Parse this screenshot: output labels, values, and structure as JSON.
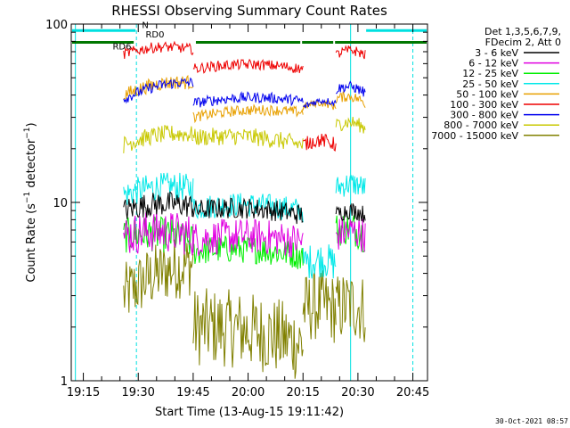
{
  "chart_data": {
    "type": "line",
    "title": "RHESSI Observing Summary Count Rates",
    "xlabel": "Start Time (13-Aug-15 19:11:42)",
    "ylabel": "Count Rate (s⁻¹ detector⁻¹)",
    "ylabel_parts": {
      "main": "Count Rate (s",
      "sup1": "−1",
      "mid": " detector",
      "sup2": "−1",
      "end": ")"
    },
    "yscale": "log",
    "ylim": [
      1,
      100
    ],
    "xlim": [
      "19:11:42",
      "20:49:00"
    ],
    "x_ticks": [
      "19:15",
      "19:30",
      "19:45",
      "20:00",
      "20:15",
      "20:30",
      "20:45"
    ],
    "y_ticks": [
      "1",
      "10",
      "100"
    ],
    "legend_header": [
      "Det 1,3,5,6,7,9,",
      "FDecim 2, Att 0"
    ],
    "legend_placement": "right",
    "footer_date": "30-Oct-2021 08:57",
    "annotations": [
      {
        "text": "N",
        "time": "19:31:00",
        "y": 95,
        "color": "#00e0e0"
      },
      {
        "text": "RD0",
        "time": "19:32:00",
        "y": 84,
        "color": "#007700"
      },
      {
        "text": "RD6",
        "time": "19:23:00",
        "y": 72,
        "color": "#007700"
      }
    ],
    "flag_bars": [
      {
        "label": "night",
        "color": "#00e0e0",
        "y": 92,
        "intervals": [
          [
            "19:11:42",
            "19:29:30"
          ],
          [
            "20:32:00",
            "20:49:00"
          ]
        ]
      },
      {
        "label": "saa",
        "color": "#007700",
        "y": 79,
        "intervals": [
          [
            "19:11:42",
            "19:29:00"
          ],
          [
            "19:45:30",
            "20:14:30"
          ],
          [
            "20:14:30",
            "20:23:30"
          ],
          [
            "20:23:30",
            "20:49:00"
          ]
        ]
      }
    ],
    "vertical_markers": [
      {
        "time": "19:12:50",
        "color": "#00e0e0",
        "style": "solid"
      },
      {
        "time": "19:29:30",
        "color": "#00e0e0",
        "style": "dashed"
      },
      {
        "time": "20:28:00",
        "color": "#00e0e0",
        "style": "solid"
      },
      {
        "time": "20:45:00",
        "color": "#00e0e0",
        "style": "dashed"
      }
    ],
    "series": [
      {
        "name": "3 - 6 keV",
        "color": "#000000",
        "segments": [
          {
            "x": [
              "19:26",
              "19:45"
            ],
            "y": [
              9,
              9.5
            ],
            "noise": 0.07
          },
          {
            "x": [
              "19:45",
              "20:15"
            ],
            "y": [
              9,
              8.5
            ],
            "noise": 0.06
          },
          {
            "x": [
              "20:24",
              "20:32"
            ],
            "y": [
              8.5,
              8.5
            ],
            "noise": 0.05
          }
        ]
      },
      {
        "name": "6 - 12 keV",
        "color": "#e000e0",
        "segments": [
          {
            "x": [
              "19:26",
              "19:45"
            ],
            "y": [
              6.5,
              6.5
            ],
            "noise": 0.12
          },
          {
            "x": [
              "19:45",
              "20:15"
            ],
            "y": [
              6.2,
              6
            ],
            "noise": 0.1
          },
          {
            "x": [
              "20:24",
              "20:32"
            ],
            "y": [
              6.5,
              6.5
            ],
            "noise": 0.1
          }
        ]
      },
      {
        "name": "12 - 25 keV",
        "color": "#00ee00",
        "segments": [
          {
            "x": [
              "19:26",
              "19:45"
            ],
            "y": [
              6.5,
              6
            ],
            "noise": 0.1
          },
          {
            "x": [
              "19:45",
              "20:15"
            ],
            "y": [
              5.3,
              5
            ],
            "noise": 0.08
          },
          {
            "x": [
              "20:24",
              "20:32"
            ],
            "y": [
              7,
              6.5
            ],
            "noise": 0.1
          }
        ]
      },
      {
        "name": "25 - 50 keV",
        "color": "#00e8e8",
        "segments": [
          {
            "x": [
              "19:26",
              "19:45"
            ],
            "y": [
              11,
              12
            ],
            "noise": 0.08
          },
          {
            "x": [
              "19:45",
              "20:15"
            ],
            "y": [
              9.3,
              9
            ],
            "noise": 0.07
          },
          {
            "x": [
              "20:15",
              "20:24"
            ],
            "y": [
              4.5,
              4.5
            ],
            "noise": 0.1
          },
          {
            "x": [
              "20:24",
              "20:32"
            ],
            "y": [
              12,
              12
            ],
            "noise": 0.07
          }
        ]
      },
      {
        "name": "50 - 100 keV",
        "color": "#e8a000",
        "segments": [
          {
            "x": [
              "19:26",
              "19:45"
            ],
            "y": [
              40,
              47
            ],
            "noise": 0.04
          },
          {
            "x": [
              "19:45",
              "20:15"
            ],
            "y": [
              30,
              32
            ],
            "noise": 0.03
          },
          {
            "x": [
              "20:15",
              "20:24"
            ],
            "y": [
              34,
              34
            ],
            "noise": 0.02
          },
          {
            "x": [
              "20:24",
              "20:32"
            ],
            "y": [
              38,
              36
            ],
            "noise": 0.03
          }
        ]
      },
      {
        "name": "100 - 300 keV",
        "color": "#ee0000",
        "segments": [
          {
            "x": [
              "19:26",
              "19:45"
            ],
            "y": [
              68,
              72
            ],
            "noise": 0.03
          },
          {
            "x": [
              "19:45",
              "20:15"
            ],
            "y": [
              56,
              56
            ],
            "noise": 0.03
          },
          {
            "x": [
              "20:15",
              "20:24"
            ],
            "y": [
              21,
              21
            ],
            "noise": 0.04
          },
          {
            "x": [
              "20:24",
              "20:32"
            ],
            "y": [
              67,
              67
            ],
            "noise": 0.03
          }
        ]
      },
      {
        "name": "300 - 800 keV",
        "color": "#0000ee",
        "segments": [
          {
            "x": [
              "19:26",
              "19:45"
            ],
            "y": [
              38,
              47
            ],
            "noise": 0.03
          },
          {
            "x": [
              "19:45",
              "20:15"
            ],
            "y": [
              36,
              37
            ],
            "noise": 0.03
          },
          {
            "x": [
              "20:15",
              "20:24"
            ],
            "y": [
              34,
              36
            ],
            "noise": 0.02
          },
          {
            "x": [
              "20:24",
              "20:32"
            ],
            "y": [
              43,
              41
            ],
            "noise": 0.03
          }
        ]
      },
      {
        "name": "800 - 7000 keV",
        "color": "#c8c800",
        "segments": [
          {
            "x": [
              "19:26",
              "19:45"
            ],
            "y": [
              21,
              24
            ],
            "noise": 0.05
          },
          {
            "x": [
              "19:45",
              "20:15"
            ],
            "y": [
              23,
              21
            ],
            "noise": 0.05
          },
          {
            "x": [
              "20:24",
              "20:32"
            ],
            "y": [
              27,
              26
            ],
            "noise": 0.04
          }
        ]
      },
      {
        "name": "7000 - 15000 keV",
        "color": "#808000",
        "segments": [
          {
            "x": [
              "19:26",
              "19:45"
            ],
            "y": [
              3,
              4.5
            ],
            "noise": 0.18
          },
          {
            "x": [
              "19:45",
              "20:15"
            ],
            "y": [
              2,
              1.6
            ],
            "noise": 0.22
          },
          {
            "x": [
              "20:15",
              "20:24"
            ],
            "y": [
              2.5,
              2.5
            ],
            "noise": 0.2
          },
          {
            "x": [
              "20:24",
              "20:32"
            ],
            "y": [
              2.5,
              2.5
            ],
            "noise": 0.2
          }
        ]
      }
    ]
  }
}
